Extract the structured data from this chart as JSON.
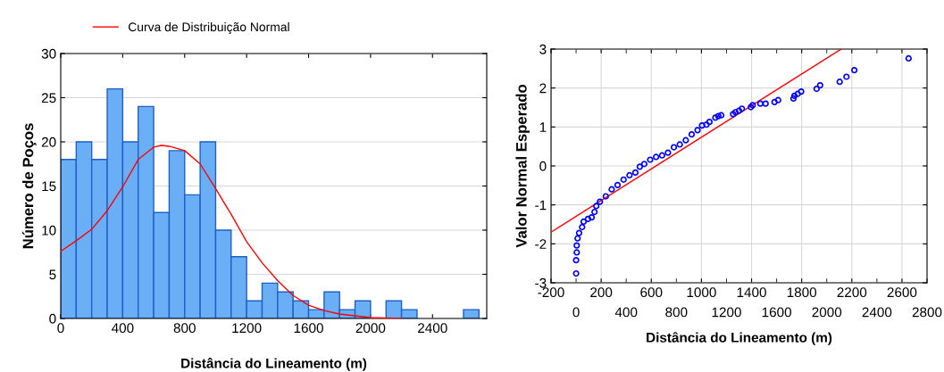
{
  "chart_data": [
    {
      "type": "histogram",
      "xlabel": "Distância do Lineamento (m)",
      "ylabel": "Número de Poços",
      "xlim": [
        0,
        2750
      ],
      "ylim": [
        0,
        30
      ],
      "xticks": [
        0,
        400,
        800,
        1200,
        1600,
        2000,
        2400
      ],
      "yticks": [
        0,
        5,
        10,
        15,
        20,
        25,
        30
      ],
      "grid": "y",
      "legend": "top",
      "series": [
        {
          "type": "histogram",
          "color": "#6aaef5",
          "bins": [
            0,
            100,
            200,
            300,
            400,
            500,
            600,
            700,
            800,
            900,
            1000,
            1100,
            1200,
            1300,
            1400,
            1500,
            1600,
            1700,
            1800,
            1900,
            2000,
            2100,
            2200,
            2300,
            2400,
            2500,
            2600,
            2700
          ],
          "values": [
            18,
            20,
            18,
            26,
            20,
            24,
            12,
            19,
            14,
            20,
            10,
            7,
            2,
            4,
            3,
            2,
            1,
            3,
            1,
            2,
            0,
            2,
            1,
            0,
            0,
            0,
            1
          ]
        },
        {
          "type": "line",
          "name": "Curva de Distribuição Normal",
          "color": "#ff0000",
          "x": [
            0,
            100,
            200,
            300,
            400,
            500,
            600,
            650,
            700,
            800,
            900,
            1000,
            1100,
            1200,
            1300,
            1400,
            1500,
            1600,
            1700,
            1800,
            2000,
            2200
          ],
          "values": [
            7.6,
            8.8,
            10.1,
            12.2,
            14.9,
            18,
            19.4,
            19.6,
            19.5,
            19,
            17.5,
            14.7,
            11.8,
            8.7,
            6.3,
            4.3,
            2.6,
            1.5,
            0.9,
            0.5,
            0.1,
            0
          ]
        }
      ]
    },
    {
      "type": "scatter",
      "xlabel": "Distância do Lineamento (m)",
      "ylabel": "Valor Normal Esperado",
      "xlim": [
        -200,
        2800
      ],
      "ylim": [
        -3,
        3
      ],
      "xticks": [
        -200,
        200,
        600,
        1000,
        1400,
        1800,
        2200,
        2600
      ],
      "x2lim": [
        -200,
        2800
      ],
      "x2ticks": [
        0,
        400,
        800,
        1200,
        1600,
        2000,
        2400,
        2800
      ],
      "yticks": [
        -3,
        -2,
        -1,
        0,
        1,
        2,
        3
      ],
      "grid": true,
      "series": [
        {
          "type": "scatter",
          "color": "#0000ff",
          "marker": "circle",
          "x": [
            0,
            0,
            5,
            5,
            12,
            24,
            48,
            60,
            95,
            124,
            147,
            161,
            190,
            237,
            284,
            331,
            379,
            426,
            473,
            508,
            544,
            591,
            638,
            686,
            733,
            780,
            827,
            875,
            922,
            969,
            1005,
            1040,
            1064,
            1111,
            1135,
            1158,
            1253,
            1271,
            1300,
            1323,
            1394,
            1409,
            1470,
            1512,
            1583,
            1612,
            1734,
            1742,
            1768,
            1796,
            1919,
            1947,
            2103,
            2157,
            2220,
            2653
          ],
          "values": [
            -2.76,
            -2.42,
            -2.22,
            -2.04,
            -1.86,
            -1.72,
            -1.57,
            -1.43,
            -1.36,
            -1.32,
            -1.18,
            -1.03,
            -0.92,
            -0.78,
            -0.6,
            -0.49,
            -0.35,
            -0.24,
            -0.17,
            -0.02,
            0.05,
            0.16,
            0.23,
            0.27,
            0.34,
            0.48,
            0.55,
            0.66,
            0.81,
            0.92,
            1.04,
            1.06,
            1.13,
            1.24,
            1.28,
            1.3,
            1.33,
            1.38,
            1.42,
            1.47,
            1.51,
            1.56,
            1.6,
            1.6,
            1.64,
            1.69,
            1.73,
            1.8,
            1.85,
            1.91,
            1.98,
            2.07,
            2.16,
            2.29,
            2.46,
            2.76
          ]
        },
        {
          "type": "line",
          "color": "#ff0000",
          "x": [
            -200,
            2115
          ],
          "values": [
            -1.7,
            3
          ]
        }
      ]
    }
  ]
}
